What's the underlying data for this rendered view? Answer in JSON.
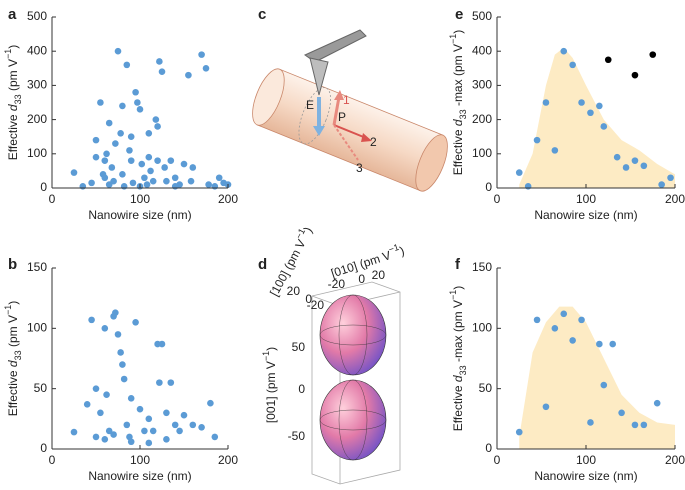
{
  "panels": [
    "a",
    "b",
    "c",
    "d",
    "e",
    "f"
  ],
  "chart_data": [
    {
      "type": "scatter",
      "x_label": "Nanowire size (nm)",
      "y_label": [
        "Effective ",
        "d",
        "33",
        " (pm V",
        "−1",
        ")"
      ],
      "xlim": [
        0,
        200
      ],
      "xticks": [
        0,
        100,
        200
      ],
      "ylim": [
        0,
        500
      ],
      "yticks": [
        0,
        100,
        200,
        300,
        400,
        500
      ],
      "series": [
        {
          "color": "#5b9bd5",
          "x": [
            25,
            35,
            45,
            50,
            55,
            58,
            60,
            62,
            65,
            68,
            70,
            72,
            75,
            78,
            80,
            82,
            85,
            88,
            90,
            92,
            95,
            97,
            100,
            102,
            105,
            108,
            110,
            112,
            115,
            118,
            120,
            122,
            125,
            128,
            130,
            135,
            140,
            145,
            150,
            155,
            158,
            160,
            170,
            175,
            178,
            185,
            190,
            195,
            200,
            65,
            80,
            90,
            120,
            100,
            140,
            110,
            60,
            50
          ],
          "values": [
            45,
            5,
            15,
            140,
            250,
            40,
            30,
            100,
            10,
            60,
            20,
            130,
            400,
            160,
            40,
            5,
            360,
            110,
            80,
            15,
            280,
            250,
            230,
            70,
            30,
            10,
            90,
            50,
            20,
            200,
            180,
            370,
            340,
            60,
            20,
            80,
            30,
            10,
            70,
            330,
            20,
            60,
            390,
            350,
            10,
            5,
            30,
            15,
            10,
            190,
            240,
            150,
            80,
            5,
            5,
            160,
            80,
            90
          ]
        }
      ]
    },
    {
      "type": "scatter",
      "x_label": "Nanowire size (nm)",
      "y_label": [
        "Effective ",
        "d",
        "33",
        " (pm V",
        "−1",
        ")"
      ],
      "xlim": [
        0,
        200
      ],
      "xticks": [
        0,
        100,
        200
      ],
      "ylim": [
        0,
        150
      ],
      "yticks": [
        0,
        50,
        100,
        150
      ],
      "series": [
        {
          "color": "#5b9bd5",
          "x": [
            25,
            40,
            45,
            50,
            55,
            60,
            62,
            65,
            70,
            72,
            75,
            78,
            80,
            82,
            85,
            88,
            90,
            95,
            100,
            105,
            110,
            115,
            120,
            122,
            125,
            130,
            135,
            140,
            145,
            150,
            160,
            170,
            180,
            185,
            50,
            60,
            70,
            90,
            110,
            130
          ],
          "values": [
            14,
            37,
            107,
            50,
            30,
            100,
            45,
            15,
            110,
            113,
            95,
            80,
            70,
            58,
            20,
            10,
            42,
            105,
            33,
            15,
            25,
            15,
            87,
            55,
            87,
            30,
            55,
            20,
            15,
            28,
            20,
            18,
            38,
            10,
            10,
            8,
            12,
            6,
            5,
            8
          ]
        }
      ]
    },
    {
      "type": "scatter",
      "x_label": "Nanowire size (nm)",
      "y_label": [
        "Effective ",
        "d",
        "33",
        " -max (pm V",
        "−1",
        ")"
      ],
      "xlim": [
        0,
        200
      ],
      "xticks": [
        0,
        100,
        200
      ],
      "ylim": [
        0,
        500
      ],
      "yticks": [
        0,
        100,
        200,
        300,
        400,
        500
      ],
      "series": [
        {
          "kind": "area",
          "color": "#fdebc4",
          "x": [
            25,
            40,
            55,
            65,
            75,
            85,
            100,
            120,
            140,
            160,
            180,
            200
          ],
          "values": [
            10,
            100,
            300,
            390,
            410,
            380,
            300,
            200,
            140,
            110,
            70,
            40
          ]
        },
        {
          "color": "#5b9bd5",
          "x": [
            25,
            35,
            45,
            55,
            65,
            75,
            85,
            95,
            105,
            115,
            120,
            135,
            145,
            155,
            165,
            185,
            195
          ],
          "values": [
            45,
            5,
            140,
            250,
            110,
            400,
            360,
            250,
            220,
            240,
            180,
            90,
            60,
            80,
            65,
            10,
            30
          ]
        },
        {
          "color": "#000000",
          "x": [
            125,
            155,
            175
          ],
          "values": [
            375,
            330,
            390
          ]
        }
      ]
    },
    {
      "type": "scatter",
      "x_label": "Nanowire size (nm)",
      "y_label": [
        "Effective ",
        "d",
        "33",
        " -max (pm V",
        "−1",
        ")"
      ],
      "xlim": [
        0,
        200
      ],
      "xticks": [
        0,
        100,
        200
      ],
      "ylim": [
        0,
        150
      ],
      "yticks": [
        0,
        50,
        100,
        150
      ],
      "series": [
        {
          "kind": "area",
          "color": "#fdebc4",
          "x": [
            25,
            40,
            55,
            70,
            85,
            100,
            120,
            140,
            160,
            180,
            200
          ],
          "values": [
            10,
            80,
            105,
            118,
            118,
            105,
            75,
            45,
            30,
            22,
            20
          ]
        },
        {
          "color": "#5b9bd5",
          "x": [
            25,
            45,
            55,
            65,
            75,
            85,
            95,
            105,
            115,
            120,
            130,
            140,
            155,
            165,
            180
          ],
          "values": [
            14,
            107,
            35,
            100,
            112,
            90,
            107,
            22,
            87,
            53,
            87,
            30,
            20,
            20,
            38
          ]
        }
      ]
    }
  ],
  "diagram_c": {
    "labels": [
      "E",
      "P",
      "1",
      "2",
      "3"
    ]
  },
  "diagram_d": {
    "axis_100": [
      "[100] (pm V",
      "−1",
      ")"
    ],
    "axis_010": [
      "[010] (pm V",
      "−1",
      ")"
    ],
    "axis_001": [
      "[001] (pm V",
      "−1",
      ")"
    ],
    "ticks_100": [
      20,
      0,
      -20
    ],
    "ticks_010": [
      -20,
      0,
      20
    ],
    "ticks_001": [
      50,
      0,
      -50
    ]
  }
}
